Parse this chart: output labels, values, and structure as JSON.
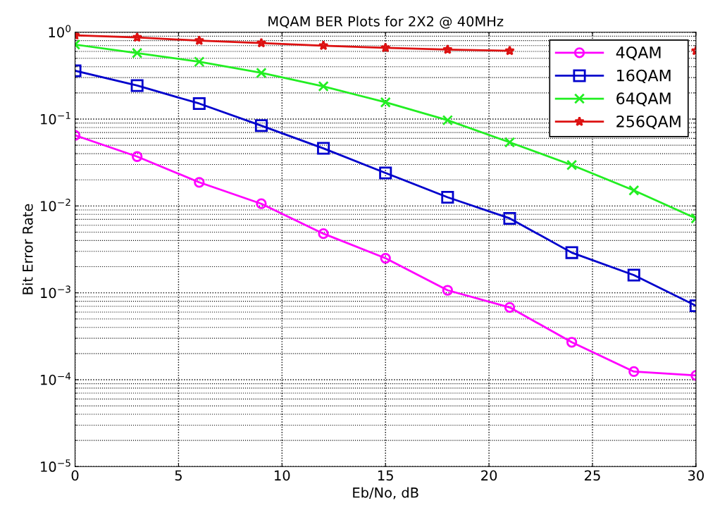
{
  "chart_data": {
    "type": "line",
    "title": "MQAM BER Plots for 2X2 @ 40MHz",
    "xlabel": "Eb/No, dB",
    "ylabel": "Bit Error Rate",
    "x": [
      0,
      3,
      6,
      9,
      12,
      15,
      18,
      21,
      24,
      27,
      30
    ],
    "series": [
      {
        "name": "4QAM",
        "color": "#ff00ff",
        "marker": "circle",
        "values": [
          0.065,
          0.037,
          0.0187,
          0.0106,
          0.0048,
          0.0025,
          0.00107,
          0.00068,
          0.00027,
          0.000124,
          0.000112
        ]
      },
      {
        "name": "16QAM",
        "color": "#0000cc",
        "marker": "square",
        "values": [
          0.36,
          0.243,
          0.151,
          0.084,
          0.046,
          0.024,
          0.0126,
          0.0072,
          0.0029,
          0.0016,
          0.00071
        ]
      },
      {
        "name": "64QAM",
        "color": "#22ee22",
        "marker": "cross",
        "values": [
          0.72,
          0.575,
          0.457,
          0.34,
          0.238,
          0.156,
          0.097,
          0.054,
          0.0296,
          0.0151,
          0.0072
        ]
      },
      {
        "name": "256QAM",
        "color": "#dd1111",
        "marker": "star",
        "values": [
          0.92,
          0.87,
          0.8,
          0.75,
          0.7,
          0.66,
          0.63,
          0.61,
          null,
          null,
          0.61
        ]
      }
    ],
    "log": "y",
    "xlim": [
      0,
      30
    ],
    "xticks": [
      0,
      5,
      10,
      15,
      20,
      25,
      30
    ],
    "ylim": [
      1e-05,
      1
    ],
    "yticks": [
      {
        "value": 1e-05,
        "label": "10$^{−5}$"
      },
      {
        "value": 0.0001,
        "label": "10$^{−4}$"
      },
      {
        "value": 0.001,
        "label": "10$^{−3}$"
      },
      {
        "value": 0.01,
        "label": "10$^{−2}$"
      },
      {
        "value": 0.1,
        "label": "10$^{−1}$"
      },
      {
        "value": 1,
        "label": "10$^{0}$"
      }
    ],
    "grid": true,
    "legend": "top right",
    "line_style": "solid"
  }
}
